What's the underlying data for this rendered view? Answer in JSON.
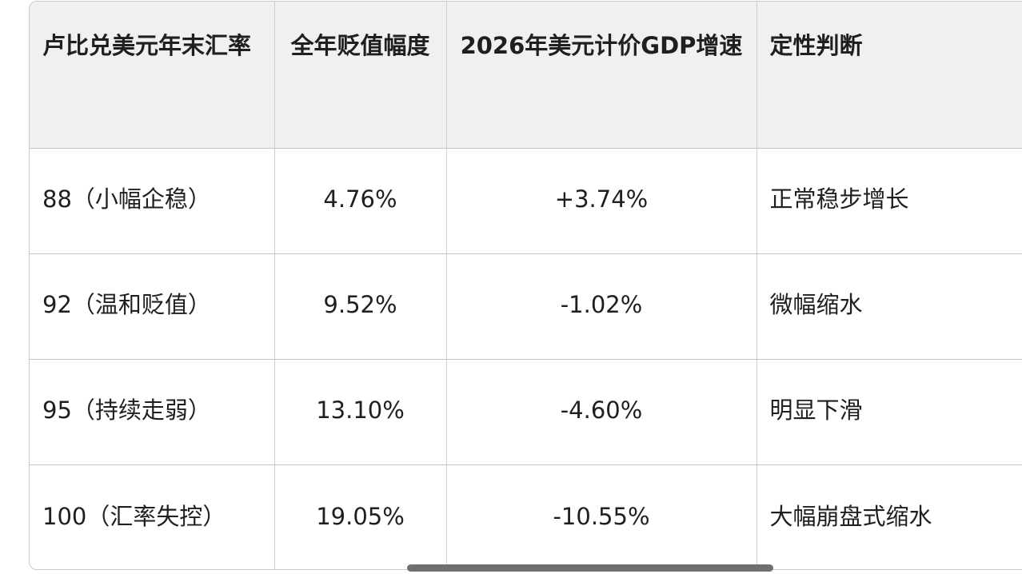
{
  "table": {
    "headers": [
      "卢比兑美元年末汇率",
      "全年贬值幅度",
      "2026年美元计价GDP增速",
      "定性判断"
    ],
    "rows": [
      [
        "88（小幅企稳）",
        "4.76%",
        "+3.74%",
        "正常稳步增长"
      ],
      [
        "92（温和贬值）",
        "9.52%",
        "-1.02%",
        "微幅缩水"
      ],
      [
        "95（持续走弱）",
        "13.10%",
        "-4.60%",
        "明显下滑"
      ],
      [
        "100（汇率失控）",
        "19.05%",
        "-10.55%",
        "大幅崩盘式缩水"
      ]
    ]
  }
}
